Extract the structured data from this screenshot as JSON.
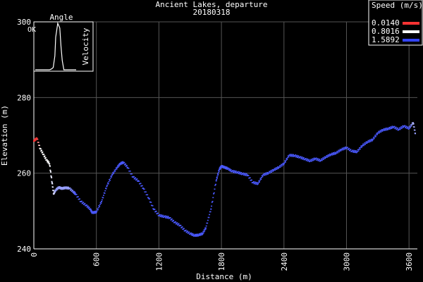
{
  "chart_data": {
    "type": "scatter",
    "title": "Ancient Lakes, departure",
    "subtitle": "20180318",
    "xlabel": "Distance (m)",
    "ylabel": "Elevation (m)",
    "xlim": [
      0,
      3680
    ],
    "ylim": [
      240,
      300
    ],
    "xticks": [
      0,
      600,
      1200,
      1800,
      2400,
      3000,
      3600
    ],
    "yticks": [
      240,
      260,
      280,
      300
    ],
    "grid": true,
    "legend": {
      "title": "Speed (m/s)",
      "placement": "top-right",
      "entries": [
        {
          "label": "0.0140",
          "color": "#ff3333"
        },
        {
          "label": "0.8016",
          "color": "#ffffff"
        },
        {
          "label": "1.5892",
          "color": "#3344ff"
        }
      ]
    },
    "colors": {
      "low": "#ff3333",
      "mid": "#ffffff",
      "high": "#3344ff",
      "grid": "#555555"
    },
    "series": [
      {
        "x": [
          0,
          30,
          60,
          90,
          120,
          150,
          175,
          190,
          210,
          240,
          270,
          300,
          340,
          380,
          400,
          450,
          500,
          540,
          560,
          600,
          650,
          700,
          750,
          800,
          830,
          860,
          900,
          950,
          1000,
          1050,
          1100,
          1150,
          1200,
          1250,
          1300,
          1350,
          1400,
          1450,
          1500,
          1540,
          1580,
          1620,
          1650,
          1700,
          1750,
          1780,
          1800,
          1830,
          1860,
          1900,
          1950,
          2000,
          2050,
          2100,
          2150,
          2200,
          2250,
          2300,
          2350,
          2400,
          2450,
          2500,
          2550,
          2600,
          2650,
          2700,
          2750,
          2800,
          2850,
          2900,
          2950,
          3000,
          3050,
          3100,
          3150,
          3200,
          3250,
          3300,
          3350,
          3400,
          3450,
          3500,
          3550,
          3600,
          3640,
          3660
        ],
        "y": [
          268.5,
          269.2,
          266.5,
          265,
          263.5,
          262.5,
          257.5,
          254.5,
          255.5,
          256.2,
          255.9,
          256.1,
          256,
          255,
          254.5,
          252.5,
          251.5,
          250.5,
          249.5,
          249.7,
          252.5,
          256.5,
          259.5,
          261.5,
          262.5,
          262.8,
          261.5,
          259,
          258,
          256,
          253.5,
          250.5,
          248.8,
          248.5,
          248.2,
          247,
          246.2,
          244.8,
          244,
          243.5,
          243.6,
          244,
          245.5,
          250.5,
          258,
          261,
          261.8,
          261.5,
          261.2,
          260.5,
          260.2,
          259.8,
          259.5,
          257.5,
          257.2,
          259.5,
          260,
          260.8,
          261.5,
          262.5,
          264.7,
          264.6,
          264.2,
          263.7,
          263.2,
          263.8,
          263.3,
          264.2,
          264.9,
          265.3,
          266.2,
          266.7,
          265.8,
          265.6,
          267.2,
          268.2,
          268.8,
          270.6,
          271.4,
          271.7,
          272.2,
          271.5,
          272.4,
          271.8,
          273.3,
          270.5
        ],
        "speed": [
          0.014,
          0.02,
          0.8,
          0.8,
          0.8,
          0.8,
          0.9,
          0.9,
          1.2,
          1.2,
          1.2,
          1.2,
          1.2,
          1.4,
          1.5,
          1.5,
          1.5,
          1.5,
          1.5,
          1.5,
          1.5,
          1.5,
          1.5,
          1.5,
          1.5,
          1.5,
          1.5,
          1.5,
          1.5,
          1.5,
          1.5,
          1.5,
          1.5,
          1.5,
          1.5,
          1.5,
          1.5,
          1.5,
          1.5,
          1.5,
          1.5,
          1.5,
          1.5,
          1.5,
          1.5,
          1.5,
          1.5,
          1.5,
          1.5,
          1.5,
          1.5,
          1.5,
          1.5,
          1.5,
          1.5,
          1.5,
          1.5,
          1.5,
          1.5,
          1.5,
          1.5,
          1.5,
          1.5,
          1.5,
          1.5,
          1.5,
          1.5,
          1.5,
          1.5,
          1.5,
          1.5,
          1.5,
          1.5,
          1.5,
          1.5,
          1.5,
          1.5,
          1.5,
          1.5,
          1.5,
          1.5,
          1.5,
          1.5,
          1.5,
          1.1,
          1.2
        ]
      }
    ],
    "inset": {
      "title": "Angle",
      "xtick_label": "0",
      "xlabel": "OK",
      "ylabel": "Velocity",
      "xlim": [
        0,
        1
      ],
      "ylim": [
        0,
        1
      ],
      "x": [
        0.0,
        0.35,
        0.4,
        0.44,
        0.48,
        0.5,
        0.55,
        0.6,
        0.63,
        0.66,
        0.7,
        1.0
      ],
      "y": [
        0.0,
        0.0,
        0.02,
        0.05,
        0.3,
        0.7,
        1.0,
        0.9,
        0.5,
        0.2,
        0.0,
        0.0
      ]
    }
  }
}
